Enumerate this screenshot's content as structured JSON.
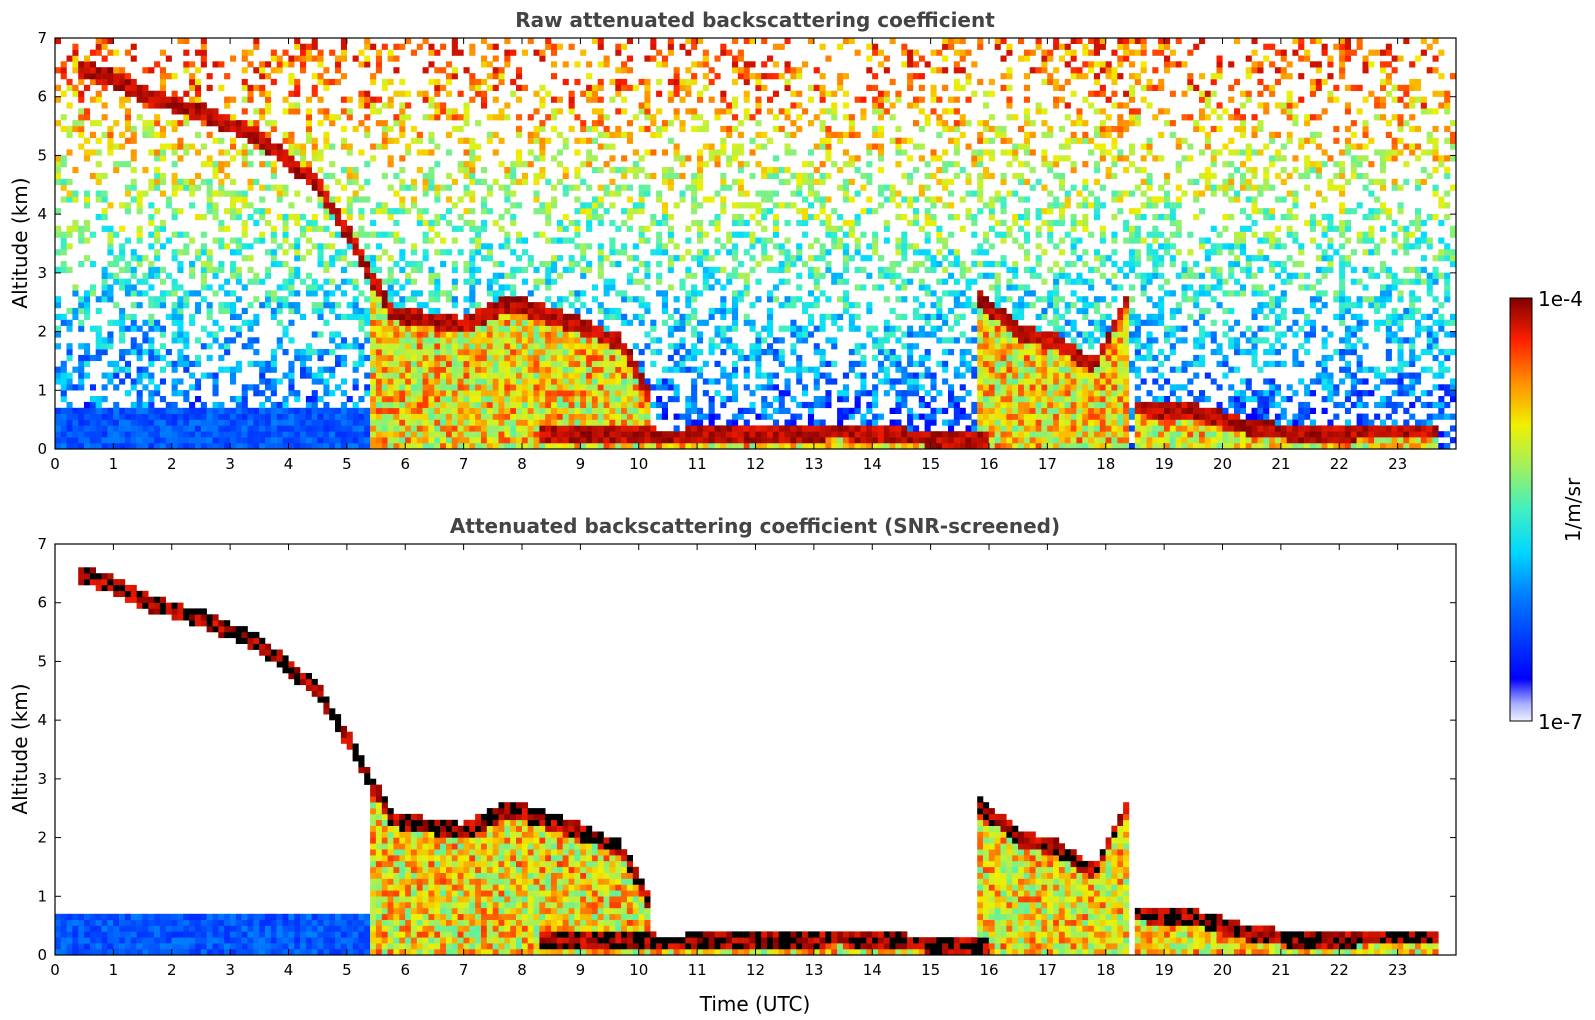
{
  "chart_data": [
    {
      "type": "heatmap",
      "title": "Raw attenuated backscattering coefficient",
      "xlabel": "",
      "ylabel": "Altitude (km)",
      "xlim": [
        0,
        24
      ],
      "ylim": [
        0,
        7
      ],
      "xticks": [
        "0",
        "1",
        "2",
        "3",
        "4",
        "5",
        "6",
        "7",
        "8",
        "9",
        "10",
        "11",
        "12",
        "13",
        "14",
        "15",
        "16",
        "17",
        "18",
        "19",
        "20",
        "21",
        "22",
        "23"
      ],
      "yticks": [
        "0",
        "1",
        "2",
        "3",
        "4",
        "5",
        "6",
        "7"
      ],
      "cloud_layers": [
        {
          "x": [
            0.4,
            1.0,
            1.6,
            2.6,
            3.5,
            4.5,
            5.0,
            5.5,
            5.8,
            7.0,
            7.8,
            9.0,
            9.7,
            10.2
          ],
          "y": [
            6.5,
            6.3,
            6.0,
            5.7,
            5.3,
            4.5,
            3.7,
            2.8,
            2.3,
            2.1,
            2.5,
            2.1,
            1.8,
            0.9
          ]
        },
        {
          "x": [
            8.3,
            9.5,
            10.5,
            12.0,
            13.5,
            15.0,
            16.0
          ],
          "y": [
            0.25,
            0.25,
            0.2,
            0.25,
            0.3,
            0.18,
            0.15
          ]
        },
        {
          "x": [
            15.8,
            16.5,
            17.2,
            17.8,
            18.4
          ],
          "y": [
            2.6,
            2.0,
            1.8,
            1.4,
            2.6
          ]
        },
        {
          "x": [
            18.5,
            19.5,
            20.5,
            21.5,
            22.5,
            23.7
          ],
          "y": [
            0.7,
            0.65,
            0.35,
            0.25,
            0.3,
            0.3
          ]
        }
      ],
      "aerosol_layer": {
        "x": [
          0,
          5.5
        ],
        "top_km": 0.7
      }
    },
    {
      "type": "heatmap",
      "title": "Attenuated backscattering coefficient (SNR-screened)",
      "xlabel": "Time (UTC)",
      "ylabel": "Altitude (km)",
      "xlim": [
        0,
        24
      ],
      "ylim": [
        0,
        7
      ],
      "xticks": [
        "0",
        "1",
        "2",
        "3",
        "4",
        "5",
        "6",
        "7",
        "8",
        "9",
        "10",
        "11",
        "12",
        "13",
        "14",
        "15",
        "16",
        "17",
        "18",
        "19",
        "20",
        "21",
        "22",
        "23"
      ],
      "yticks": [
        "0",
        "1",
        "2",
        "3",
        "4",
        "5",
        "6",
        "7"
      ]
    }
  ],
  "colorbar": {
    "label": "1/m/sr",
    "max_label": "1e-4",
    "min_label": "1e-7",
    "scale": "log",
    "colormap": "jet"
  }
}
